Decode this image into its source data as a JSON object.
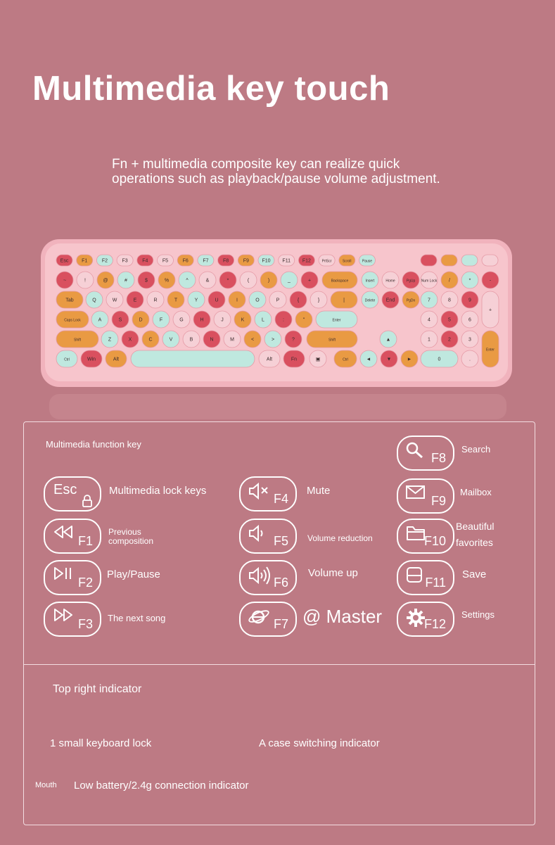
{
  "header": {
    "title": "Multimedia key touch",
    "subtitle": "Fn + multimedia composite key can realize quick operations such as playback/pause volume adjustment."
  },
  "colors": {
    "background": "#bd7a84",
    "keyboard_body": "#f1b3bd",
    "key_red": "#d9505f",
    "key_orange": "#e99a43",
    "key_mint": "#bfe8df",
    "key_pink": "#f6d0d6"
  },
  "keyboard": {
    "fn_row": [
      "Esc",
      "F1",
      "F2",
      "F3",
      "F4",
      "F5",
      "F6",
      "F7",
      "F8",
      "F9",
      "F10",
      "F11",
      "F12",
      "PrtScr",
      "Scroll",
      "Pause"
    ],
    "num_row": [
      "~",
      "!",
      "@",
      "#",
      "$",
      "%",
      "^",
      "&",
      "*",
      "(",
      ")",
      "_",
      "+",
      "Backspace",
      "Insert",
      "Home",
      "PgUp",
      "Num Lock",
      "/",
      "*",
      "-"
    ],
    "q_row": [
      "Tab",
      "Q",
      "W",
      "E",
      "R",
      "T",
      "Y",
      "U",
      "I",
      "O",
      "P",
      "{",
      "}",
      "|",
      "Delete",
      "End",
      "PgDn",
      "7",
      "8",
      "9",
      "+"
    ],
    "a_row": [
      "Caps Lock",
      "A",
      "S",
      "D",
      "F",
      "G",
      "H",
      "J",
      "K",
      "L",
      ":",
      "\"",
      "Enter",
      "4",
      "5",
      "6"
    ],
    "z_row": [
      "Shift",
      "Z",
      "X",
      "C",
      "V",
      "B",
      "N",
      "M",
      "<",
      ">",
      "?",
      "Shift",
      "▲",
      "1",
      "2",
      "3",
      "Enter"
    ],
    "space_row": [
      "Ctrl",
      "Win",
      "Alt",
      "",
      "Alt",
      "Fn",
      "▣",
      "Ctrl",
      "◄",
      "▼",
      "►",
      "0",
      "."
    ]
  },
  "legend": {
    "heading": "Multimedia function key",
    "items": [
      {
        "key": "F8",
        "icon": "search-icon",
        "label": "Search"
      },
      {
        "key": "Esc",
        "icon": "lock-icon",
        "label": "Multimedia lock keys"
      },
      {
        "key": "F4",
        "icon": "mute-icon",
        "label": "Mute"
      },
      {
        "key": "F9",
        "icon": "mail-icon",
        "label": "Mailbox"
      },
      {
        "key": "F1",
        "icon": "rewind-icon",
        "label": "Previous composition"
      },
      {
        "key": "F5",
        "icon": "volume-down-icon",
        "label": "Volume reduction"
      },
      {
        "key": "F10",
        "icon": "folder-icon",
        "label": "Beautiful favorites"
      },
      {
        "key": "F2",
        "icon": "play-pause-icon",
        "label": "Play/Pause"
      },
      {
        "key": "F6",
        "icon": "volume-up-icon",
        "label": "Volume up"
      },
      {
        "key": "F11",
        "icon": "save-icon",
        "label": "Save"
      },
      {
        "key": "F3",
        "icon": "fast-forward-icon",
        "label": "The next song"
      },
      {
        "key": "F7",
        "icon": "browser-icon",
        "label": "@ Master"
      },
      {
        "key": "F12",
        "icon": "gear-icon",
        "label": "Settings"
      }
    ]
  },
  "indicators": {
    "heading": "Top right indicator",
    "item1": "1 small keyboard lock",
    "item2": "A case switching indicator",
    "item3_prefix": "Mouth",
    "item3": "Low battery/2.4g connection indicator"
  }
}
